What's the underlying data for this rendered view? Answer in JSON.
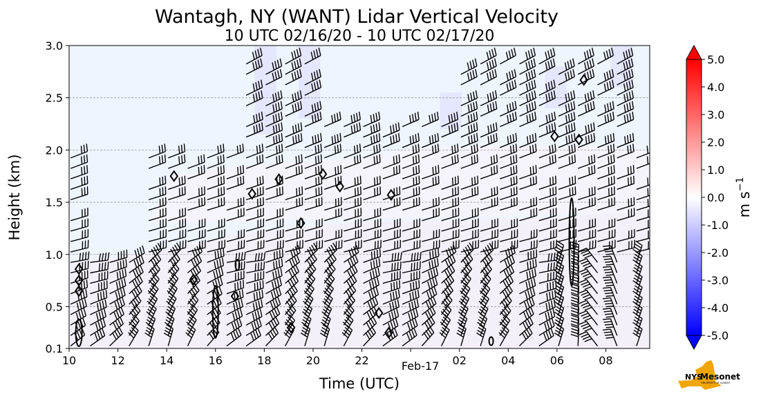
{
  "chart_data": {
    "type": "heatmap",
    "title": "Wantagh, NY (WANT) Lidar Vertical Velocity",
    "subtitle": "10 UTC 02/16/20 - 10 UTC 02/17/20",
    "xlabel": "Time (UTC)",
    "ylabel": "Height (km)",
    "x_ticks": [
      "10",
      "12",
      "14",
      "16",
      "18",
      "20",
      "22",
      "Feb-17",
      "02",
      "04",
      "06",
      "08"
    ],
    "y_ticks": [
      "0.1",
      "0.5",
      "1.0",
      "1.5",
      "2.0",
      "2.5",
      "3.0"
    ],
    "y_tick_values": [
      0.1,
      0.5,
      1.0,
      1.5,
      2.0,
      2.5,
      3.0
    ],
    "xlim_hours": [
      10,
      33.8
    ],
    "ylim": [
      0.1,
      3.0
    ],
    "grid": "horizontal dashed",
    "colorbar": {
      "label_main": "m s",
      "label_exp": "−1",
      "ticks": [
        "5.0",
        "4.0",
        "3.0",
        "2.0",
        "1.0",
        "0.0",
        "-1.0",
        "-2.0",
        "-3.0",
        "-4.0",
        "-5.0"
      ],
      "range": [
        -5.0,
        5.0
      ],
      "colors": [
        "#0000ff",
        "#ffffff",
        "#ff0000"
      ]
    },
    "background_color": "#eef5ff",
    "lowlevel_color": "#f3f0fa",
    "highlight_color": "#d6d6ff"
  },
  "logo": {
    "text_main": "Mesonet",
    "text_nys": "NYS",
    "text_sub": "UNIVERSITY AT ALBANY",
    "color_state": "#f0a500",
    "color_text": "#4b2e83"
  }
}
